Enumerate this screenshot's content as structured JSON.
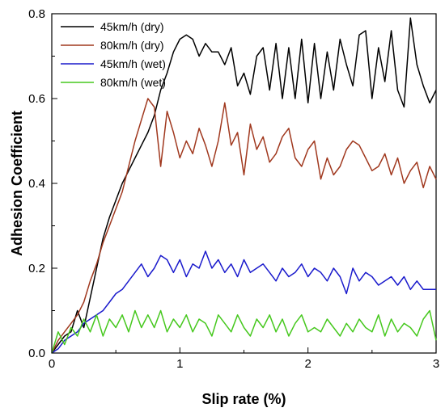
{
  "chart_data": {
    "type": "line",
    "title": "",
    "xlabel": "Slip rate (%)",
    "ylabel": "Adhesion Coefficient",
    "xlim": [
      0,
      3
    ],
    "ylim": [
      0,
      0.8
    ],
    "xticks": [
      "0",
      "1",
      "2",
      "3"
    ],
    "yticks": [
      "0.0",
      "0.2",
      "0.4",
      "0.6",
      "0.8"
    ],
    "grid": false,
    "legend": "top-left",
    "series": [
      {
        "name": "45km/h (dry)",
        "color": "#000000",
        "x": [
          0,
          0.05,
          0.1,
          0.15,
          0.2,
          0.25,
          0.3,
          0.35,
          0.4,
          0.45,
          0.5,
          0.55,
          0.6,
          0.65,
          0.7,
          0.75,
          0.8,
          0.85,
          0.9,
          0.95,
          1.0,
          1.05,
          1.1,
          1.15,
          1.2,
          1.25,
          1.3,
          1.35,
          1.4,
          1.45,
          1.5,
          1.55,
          1.6,
          1.65,
          1.7,
          1.75,
          1.8,
          1.85,
          1.9,
          1.95,
          2.0,
          2.05,
          2.1,
          2.15,
          2.2,
          2.25,
          2.3,
          2.35,
          2.4,
          2.45,
          2.5,
          2.55,
          2.6,
          2.65,
          2.7,
          2.75,
          2.8,
          2.85,
          2.9,
          2.95,
          3.0
        ],
        "y": [
          0.0,
          0.02,
          0.04,
          0.05,
          0.1,
          0.06,
          0.13,
          0.2,
          0.27,
          0.32,
          0.36,
          0.4,
          0.43,
          0.46,
          0.49,
          0.52,
          0.56,
          0.62,
          0.66,
          0.71,
          0.74,
          0.75,
          0.74,
          0.7,
          0.73,
          0.71,
          0.71,
          0.68,
          0.72,
          0.63,
          0.66,
          0.61,
          0.7,
          0.72,
          0.62,
          0.73,
          0.6,
          0.72,
          0.6,
          0.74,
          0.59,
          0.73,
          0.6,
          0.71,
          0.62,
          0.74,
          0.68,
          0.63,
          0.75,
          0.76,
          0.6,
          0.72,
          0.64,
          0.76,
          0.62,
          0.58,
          0.79,
          0.68,
          0.63,
          0.59,
          0.62
        ]
      },
      {
        "name": "80km/h (dry)",
        "color": "#a0381e",
        "x": [
          0,
          0.05,
          0.1,
          0.15,
          0.2,
          0.25,
          0.3,
          0.35,
          0.4,
          0.45,
          0.5,
          0.55,
          0.6,
          0.65,
          0.7,
          0.75,
          0.8,
          0.85,
          0.9,
          0.95,
          1.0,
          1.05,
          1.1,
          1.15,
          1.2,
          1.25,
          1.3,
          1.35,
          1.4,
          1.45,
          1.5,
          1.55,
          1.6,
          1.65,
          1.7,
          1.75,
          1.8,
          1.85,
          1.9,
          1.95,
          2.0,
          2.05,
          2.1,
          2.15,
          2.2,
          2.25,
          2.3,
          2.35,
          2.4,
          2.45,
          2.5,
          2.55,
          2.6,
          2.65,
          2.7,
          2.75,
          2.8,
          2.85,
          2.9,
          2.95,
          3.0
        ],
        "y": [
          0.0,
          0.03,
          0.05,
          0.07,
          0.09,
          0.12,
          0.17,
          0.21,
          0.26,
          0.3,
          0.34,
          0.38,
          0.44,
          0.5,
          0.55,
          0.6,
          0.58,
          0.44,
          0.57,
          0.52,
          0.46,
          0.5,
          0.47,
          0.53,
          0.49,
          0.44,
          0.5,
          0.59,
          0.49,
          0.52,
          0.42,
          0.54,
          0.48,
          0.51,
          0.45,
          0.47,
          0.51,
          0.53,
          0.46,
          0.44,
          0.48,
          0.5,
          0.41,
          0.46,
          0.42,
          0.44,
          0.48,
          0.5,
          0.49,
          0.46,
          0.43,
          0.44,
          0.47,
          0.42,
          0.46,
          0.4,
          0.43,
          0.45,
          0.39,
          0.44,
          0.41
        ]
      },
      {
        "name": "45km/h (wet)",
        "color": "#1a1acc",
        "x": [
          0,
          0.05,
          0.1,
          0.15,
          0.2,
          0.25,
          0.3,
          0.35,
          0.4,
          0.45,
          0.5,
          0.55,
          0.6,
          0.65,
          0.7,
          0.75,
          0.8,
          0.85,
          0.9,
          0.95,
          1.0,
          1.05,
          1.1,
          1.15,
          1.2,
          1.25,
          1.3,
          1.35,
          1.4,
          1.45,
          1.5,
          1.55,
          1.6,
          1.65,
          1.7,
          1.75,
          1.8,
          1.85,
          1.9,
          1.95,
          2.0,
          2.05,
          2.1,
          2.15,
          2.2,
          2.25,
          2.3,
          2.35,
          2.4,
          2.45,
          2.5,
          2.55,
          2.6,
          2.65,
          2.7,
          2.75,
          2.8,
          2.85,
          2.9,
          2.95,
          3.0
        ],
        "y": [
          0.0,
          0.01,
          0.03,
          0.04,
          0.05,
          0.07,
          0.08,
          0.09,
          0.1,
          0.12,
          0.14,
          0.15,
          0.17,
          0.19,
          0.21,
          0.18,
          0.2,
          0.23,
          0.22,
          0.19,
          0.22,
          0.18,
          0.21,
          0.2,
          0.24,
          0.2,
          0.22,
          0.19,
          0.21,
          0.18,
          0.22,
          0.19,
          0.2,
          0.21,
          0.19,
          0.17,
          0.2,
          0.18,
          0.19,
          0.21,
          0.18,
          0.2,
          0.19,
          0.17,
          0.2,
          0.18,
          0.14,
          0.2,
          0.17,
          0.19,
          0.18,
          0.16,
          0.17,
          0.18,
          0.16,
          0.18,
          0.15,
          0.17,
          0.15,
          0.15,
          0.15
        ]
      },
      {
        "name": "80km/h (wet)",
        "color": "#46c81e",
        "x": [
          0,
          0.05,
          0.1,
          0.15,
          0.2,
          0.25,
          0.3,
          0.35,
          0.4,
          0.45,
          0.5,
          0.55,
          0.6,
          0.65,
          0.7,
          0.75,
          0.8,
          0.85,
          0.9,
          0.95,
          1.0,
          1.05,
          1.1,
          1.15,
          1.2,
          1.25,
          1.3,
          1.35,
          1.4,
          1.45,
          1.5,
          1.55,
          1.6,
          1.65,
          1.7,
          1.75,
          1.8,
          1.85,
          1.9,
          1.95,
          2.0,
          2.05,
          2.1,
          2.15,
          2.2,
          2.25,
          2.3,
          2.35,
          2.4,
          2.45,
          2.5,
          2.55,
          2.6,
          2.65,
          2.7,
          2.75,
          2.8,
          2.85,
          2.9,
          2.95,
          3.0
        ],
        "y": [
          0.0,
          0.05,
          0.02,
          0.06,
          0.04,
          0.08,
          0.05,
          0.09,
          0.04,
          0.08,
          0.06,
          0.09,
          0.05,
          0.1,
          0.06,
          0.09,
          0.06,
          0.1,
          0.05,
          0.08,
          0.06,
          0.09,
          0.05,
          0.08,
          0.07,
          0.04,
          0.09,
          0.07,
          0.05,
          0.09,
          0.06,
          0.04,
          0.08,
          0.06,
          0.09,
          0.05,
          0.08,
          0.04,
          0.07,
          0.09,
          0.05,
          0.06,
          0.05,
          0.08,
          0.06,
          0.04,
          0.07,
          0.05,
          0.08,
          0.06,
          0.05,
          0.09,
          0.04,
          0.08,
          0.05,
          0.07,
          0.06,
          0.04,
          0.08,
          0.1,
          0.03
        ]
      }
    ]
  }
}
